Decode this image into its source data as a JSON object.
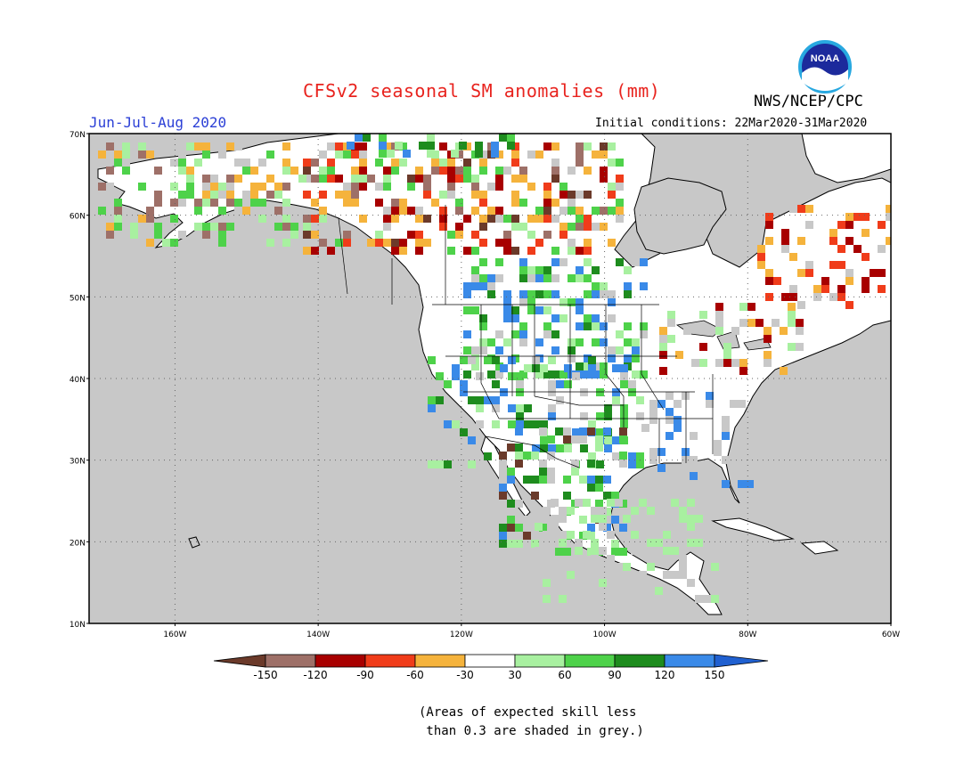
{
  "title": "CFSv2 seasonal SM anomalies (mm)",
  "agency": "NWS/NCEP/CPC",
  "season": "Jun-Jul-Aug 2020",
  "initial_conditions": "Initial conditions: 22Mar2020-31Mar2020",
  "logo_text": "NOAA",
  "note_line1": "(Areas of expected skill less",
  "note_line2": " than 0.3 are shaded in grey.)",
  "map": {
    "lon_range": [
      -172,
      -60
    ],
    "lat_range": [
      10,
      70
    ],
    "lat_labels": [
      "70N",
      "60N",
      "50N",
      "40N",
      "30N",
      "20N",
      "10N"
    ],
    "lon_labels": [
      "160W",
      "140W",
      "120W",
      "100W",
      "80W",
      "60W"
    ],
    "colors": {
      "grey_no_skill": "#c8c8c8",
      "ocean": "#c8c8c8",
      "land": "#ffffff"
    }
  },
  "colorbar": {
    "ticks": [
      "-150",
      "-120",
      "-90",
      "-60",
      "-30",
      "30",
      "60",
      "90",
      "120",
      "150"
    ],
    "colors": [
      "#6b3a2a",
      "#9e7068",
      "#a80000",
      "#f03c1a",
      "#f5b33c",
      "#ffffff",
      "#a8f0a0",
      "#4ed24a",
      "#1e8c1e",
      "#3a8ae8",
      "#2060d0"
    ]
  }
}
